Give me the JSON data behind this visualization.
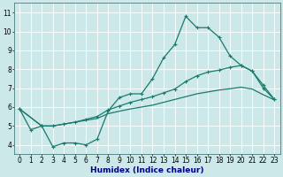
{
  "background_color": "#cde8e8",
  "grid_color": "#ffffff",
  "line_color": "#1a7a6e",
  "marker": "+",
  "marker_size": 3,
  "marker_linewidth": 0.8,
  "line_width": 0.9,
  "xlabel": "Humidex (Indice chaleur)",
  "xlabel_fontsize": 6.5,
  "xlabel_color": "#00008b",
  "tick_fontsize": 5.5,
  "ylim": [
    3.5,
    11.5
  ],
  "xlim": [
    -0.5,
    23.5
  ],
  "yticks": [
    4,
    5,
    6,
    7,
    8,
    9,
    10,
    11
  ],
  "xticks": [
    0,
    1,
    2,
    3,
    4,
    5,
    6,
    7,
    8,
    9,
    10,
    11,
    12,
    13,
    14,
    15,
    16,
    17,
    18,
    19,
    20,
    21,
    22,
    23
  ],
  "line1_x": [
    0,
    1,
    2,
    3,
    4,
    5,
    6,
    7,
    8,
    9,
    10,
    11,
    12,
    13,
    14,
    15,
    16,
    17,
    18,
    19,
    20,
    21,
    22,
    23
  ],
  "line1_y": [
    5.9,
    4.8,
    5.0,
    3.9,
    4.1,
    4.1,
    4.0,
    4.3,
    5.8,
    6.5,
    6.7,
    6.7,
    7.5,
    8.6,
    9.3,
    10.8,
    10.2,
    10.2,
    9.7,
    8.7,
    8.2,
    7.9,
    7.0,
    6.4
  ],
  "line2_x": [
    0,
    2,
    3,
    4,
    5,
    6,
    7,
    8,
    9,
    10,
    11,
    12,
    13,
    14,
    15,
    16,
    17,
    18,
    19,
    20,
    21,
    22,
    23
  ],
  "line2_y": [
    5.9,
    5.0,
    5.0,
    5.1,
    5.2,
    5.35,
    5.5,
    5.85,
    6.05,
    6.25,
    6.4,
    6.55,
    6.75,
    6.95,
    7.35,
    7.65,
    7.85,
    7.95,
    8.1,
    8.2,
    7.9,
    7.15,
    6.4
  ],
  "line3_x": [
    0,
    2,
    3,
    4,
    5,
    6,
    7,
    8,
    9,
    10,
    11,
    12,
    13,
    14,
    15,
    16,
    17,
    18,
    19,
    20,
    21,
    22,
    23
  ],
  "line3_y": [
    5.9,
    5.0,
    5.0,
    5.1,
    5.2,
    5.3,
    5.4,
    5.65,
    5.78,
    5.9,
    6.0,
    6.1,
    6.25,
    6.4,
    6.55,
    6.7,
    6.8,
    6.9,
    6.97,
    7.05,
    6.95,
    6.65,
    6.38
  ]
}
